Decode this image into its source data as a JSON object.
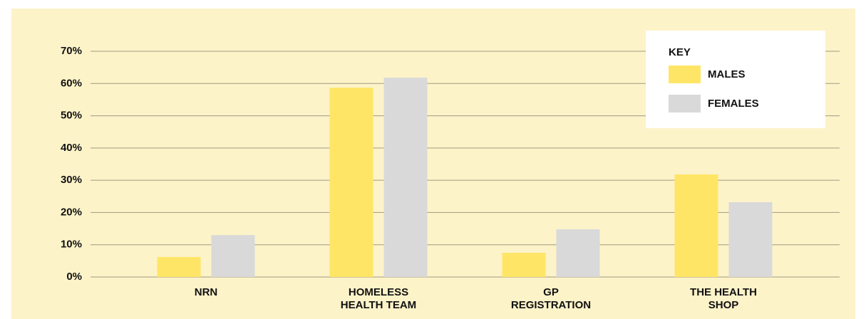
{
  "chart_data": {
    "type": "bar",
    "categories": [
      "NRN",
      "HOMELESS HEALTH TEAM",
      "GP REGISTRATION",
      "THE HEALTH SHOP"
    ],
    "series": [
      {
        "name": "MALES",
        "color": "#ffe566",
        "values": [
          6.2,
          58.7,
          7.5,
          31.8
        ]
      },
      {
        "name": "FEMALES",
        "color": "#d9d9d9",
        "values": [
          13,
          61.8,
          14.8,
          23.2
        ]
      }
    ],
    "legend_title": "KEY",
    "legend_position": "upper right",
    "ylim": [
      0,
      70
    ],
    "yticks": [
      {
        "value": 0,
        "label": "0%"
      },
      {
        "value": 10,
        "label": "10%"
      },
      {
        "value": 20,
        "label": "20%"
      },
      {
        "value": 30,
        "label": "30%"
      },
      {
        "value": 40,
        "label": "40%"
      },
      {
        "value": 50,
        "label": "50%"
      },
      {
        "value": 60,
        "label": "60%"
      },
      {
        "value": 70,
        "label": "70%"
      }
    ],
    "grid": true,
    "background": "#fdf3c9"
  }
}
